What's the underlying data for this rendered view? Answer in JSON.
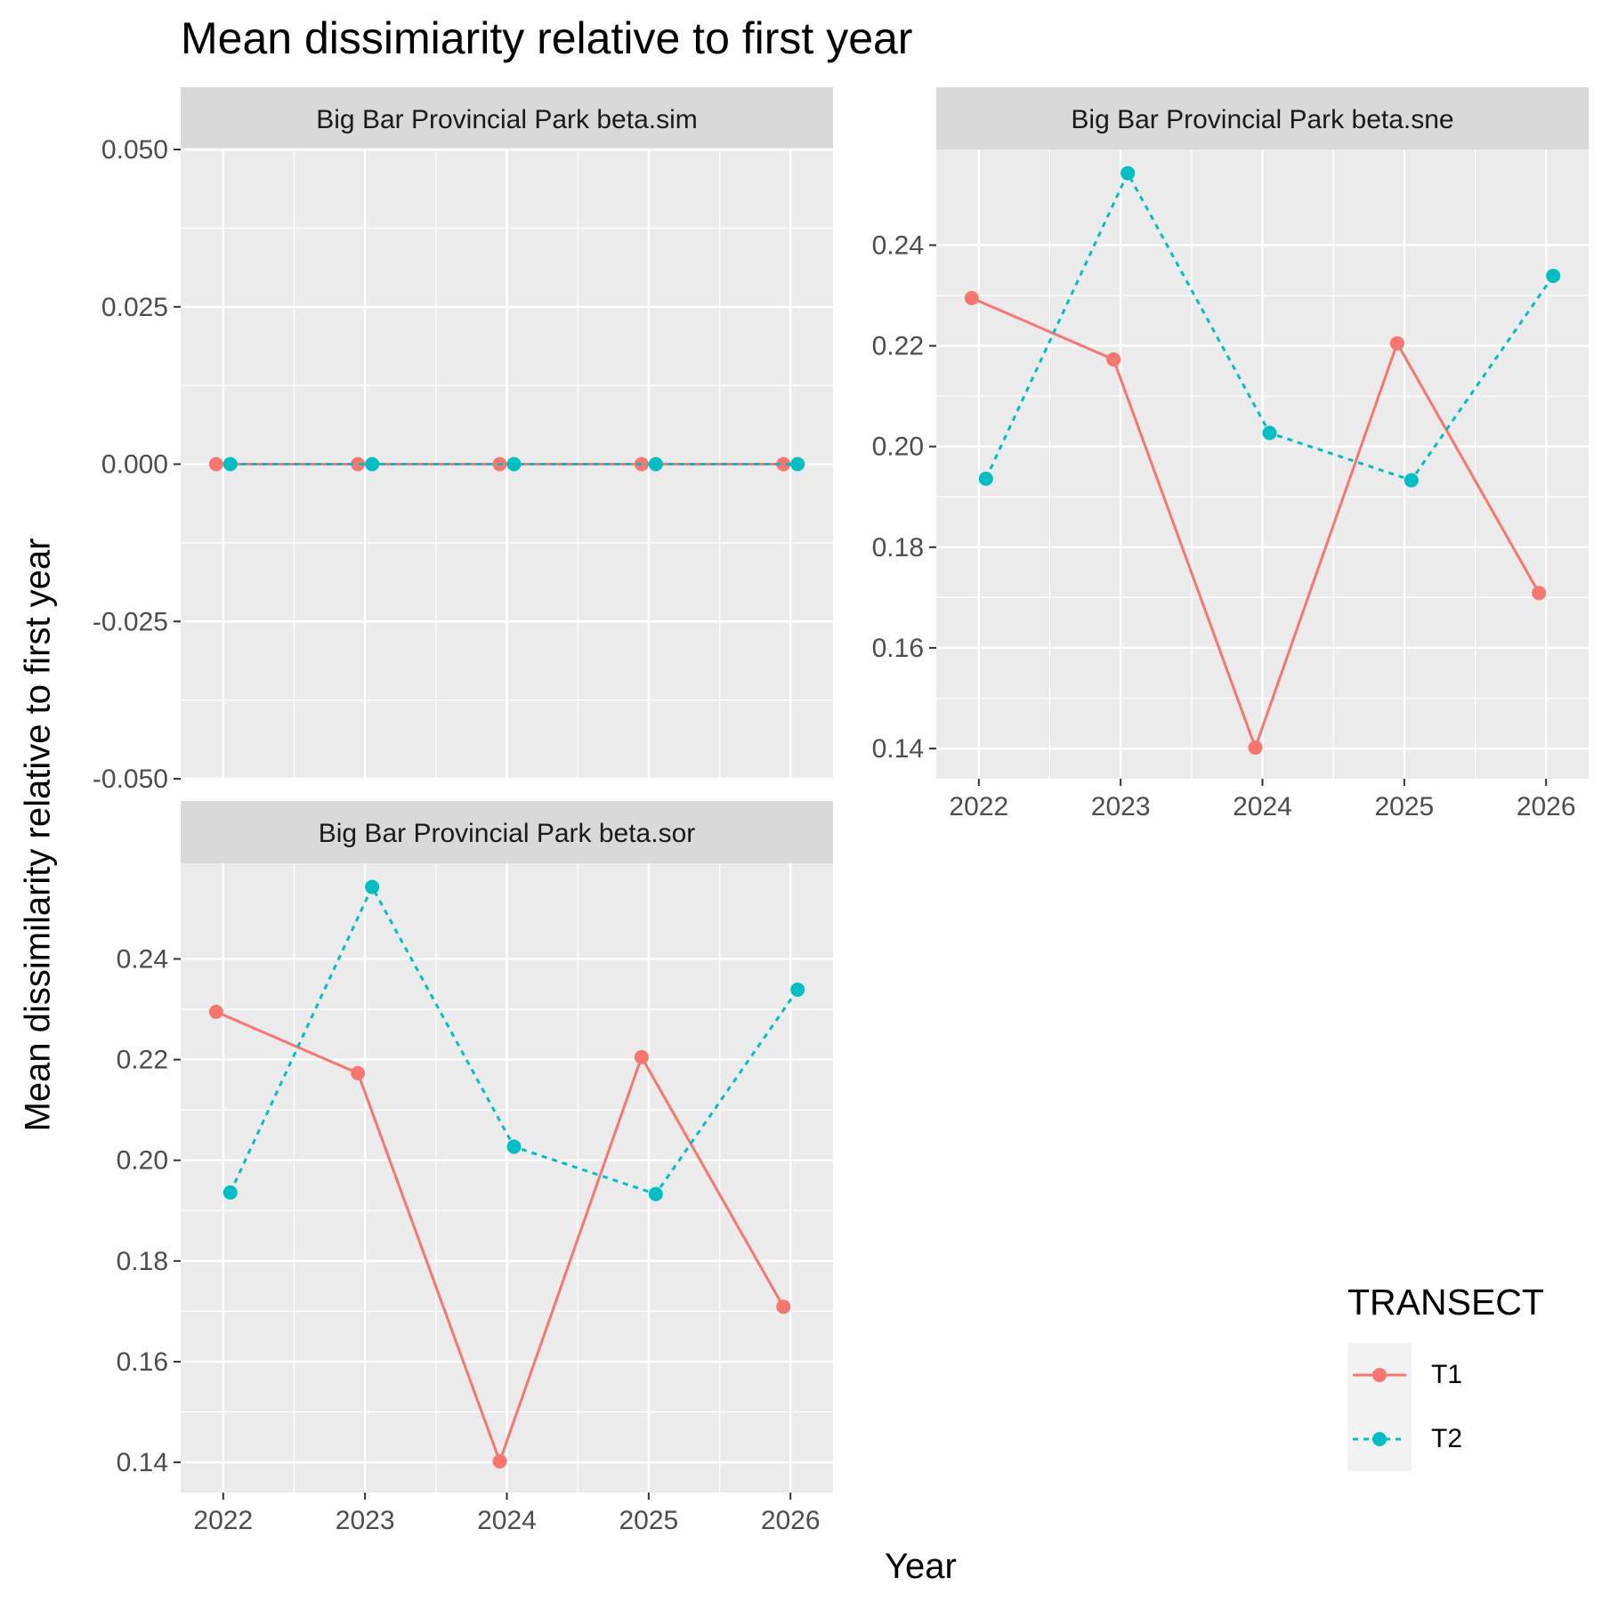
{
  "title": "Mean dissimiarity relative to first year",
  "y_axis_title": "Mean dissimilarity relative to first year",
  "x_axis_title": "Year",
  "legend": {
    "title": "TRANSECT",
    "position": "bottom-right",
    "entries": [
      {
        "label": "T1",
        "color": "#F8766D",
        "line": "solid"
      },
      {
        "label": "T2",
        "color": "#00BFC4",
        "line": "dotted"
      }
    ]
  },
  "chart_data": [
    {
      "type": "line",
      "title": "Big Bar Provincial Park beta.sim",
      "x": [
        2022,
        2023,
        2024,
        2025,
        2026
      ],
      "xlim": [
        2021.7,
        2026.3
      ],
      "ylim": [
        -0.05,
        0.05
      ],
      "yticks": [
        0.05,
        0.025,
        0.0,
        -0.025,
        -0.05
      ],
      "ytick_labels": [
        "0.050",
        "0.025",
        "0.000",
        "-0.025",
        "-0.050"
      ],
      "xticks": [
        2022,
        2023,
        2024,
        2025,
        2026
      ],
      "xtick_labels": [],
      "grid": true,
      "series": [
        {
          "name": "T1",
          "values": [
            0,
            0,
            0,
            0,
            0
          ]
        },
        {
          "name": "T2",
          "values": [
            0,
            0,
            0,
            0,
            0
          ]
        }
      ]
    },
    {
      "type": "line",
      "title": "Big Bar Provincial Park beta.sne",
      "x": [
        2022,
        2023,
        2024,
        2025,
        2026
      ],
      "xlim": [
        2021.7,
        2026.3
      ],
      "ylim": [
        0.134,
        0.259
      ],
      "yticks": [
        0.14,
        0.16,
        0.18,
        0.2,
        0.22,
        0.24
      ],
      "ytick_labels": [
        "0.14",
        "0.16",
        "0.18",
        "0.20",
        "0.22",
        "0.24"
      ],
      "xticks": [
        2022,
        2023,
        2024,
        2025,
        2026
      ],
      "xtick_labels": [
        "2022",
        "2023",
        "2024",
        "2025",
        "2026"
      ],
      "grid": true,
      "series": [
        {
          "name": "T1",
          "values": [
            0.2295,
            0.2173,
            0.1402,
            0.2205,
            0.1709
          ]
        },
        {
          "name": "T2",
          "values": [
            0.1936,
            0.2543,
            0.2027,
            0.1933,
            0.2339
          ]
        }
      ]
    },
    {
      "type": "line",
      "title": "Big Bar Provincial Park beta.sor",
      "x": [
        2022,
        2023,
        2024,
        2025,
        2026
      ],
      "xlim": [
        2021.7,
        2026.3
      ],
      "ylim": [
        0.134,
        0.259
      ],
      "yticks": [
        0.14,
        0.16,
        0.18,
        0.2,
        0.22,
        0.24
      ],
      "ytick_labels": [
        "0.14",
        "0.16",
        "0.18",
        "0.20",
        "0.22",
        "0.24"
      ],
      "xticks": [
        2022,
        2023,
        2024,
        2025,
        2026
      ],
      "xtick_labels": [
        "2022",
        "2023",
        "2024",
        "2025",
        "2026"
      ],
      "grid": true,
      "series": [
        {
          "name": "T1",
          "values": [
            0.2295,
            0.2173,
            0.1402,
            0.2205,
            0.1709
          ]
        },
        {
          "name": "T2",
          "values": [
            0.1936,
            0.2543,
            0.2027,
            0.1933,
            0.2339
          ]
        }
      ]
    }
  ]
}
